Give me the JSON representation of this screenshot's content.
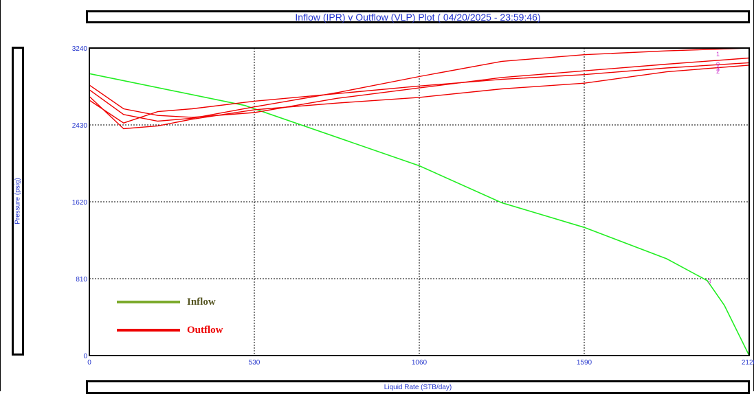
{
  "title": "Inflow (IPR) v Outflow (VLP) Plot ( 04/20/2025 - 23:59:46)",
  "chart_data": {
    "type": "line",
    "title": "Inflow (IPR) v Outflow (VLP) Plot ( 04/20/2025 - 23:59:46)",
    "xlabel": "Liquid Rate  (STB/day)",
    "ylabel": "Pressure  (psig)",
    "xlim": [
      0,
      2120
    ],
    "ylim": [
      0,
      3240
    ],
    "xticks": [
      "0",
      "530",
      "1060",
      "1590",
      "2120"
    ],
    "yticks": [
      "0",
      "810",
      "1620",
      "2430",
      "3240"
    ],
    "grid": true,
    "legend_position": "bottom-left",
    "legend": [
      {
        "label": "Inflow",
        "color": "#7caa2c",
        "text_color": "#555522"
      },
      {
        "label": "Outflow",
        "color": "#ee0000",
        "text_color": "#ee0000"
      }
    ],
    "series": [
      {
        "role": "inflow",
        "color": "#22ee22",
        "label": "",
        "x": [
          0,
          500,
          1060,
          1325,
          1590,
          1855,
          1985,
          2040,
          2120
        ],
        "y": [
          2970,
          2635,
          2000,
          1610,
          1350,
          1020,
          790,
          530,
          0
        ]
      },
      {
        "role": "outflow",
        "color": "#ee0000",
        "label": "0",
        "x": [
          0,
          110,
          220,
          330,
          530,
          795,
          1060,
          1325,
          1590,
          1855,
          2120
        ],
        "y": [
          2850,
          2600,
          2530,
          2510,
          2560,
          2710,
          2820,
          2930,
          3000,
          3070,
          3135
        ]
      },
      {
        "role": "outflow",
        "color": "#ee0000",
        "label": "1",
        "x": [
          0,
          110,
          220,
          330,
          530,
          795,
          1060,
          1325,
          1590,
          1855,
          2120
        ],
        "y": [
          2800,
          2540,
          2470,
          2500,
          2620,
          2770,
          2940,
          3100,
          3170,
          3210,
          3240
        ]
      },
      {
        "role": "outflow",
        "color": "#ee0000",
        "label": "2",
        "x": [
          0,
          110,
          220,
          330,
          530,
          795,
          1060,
          1325,
          1590,
          1855,
          2120
        ],
        "y": [
          2730,
          2390,
          2420,
          2490,
          2590,
          2660,
          2720,
          2810,
          2870,
          2990,
          3060
        ]
      },
      {
        "role": "outflow",
        "color": "#ee0000",
        "label": "3",
        "x": [
          0,
          110,
          220,
          330,
          530,
          795,
          1060,
          1325,
          1590,
          1855,
          2120
        ],
        "y": [
          2690,
          2450,
          2570,
          2600,
          2680,
          2760,
          2840,
          2910,
          2960,
          3030,
          3085
        ]
      }
    ],
    "intersection_marker": {
      "label": "3",
      "x": 1995,
      "y": 790
    }
  }
}
